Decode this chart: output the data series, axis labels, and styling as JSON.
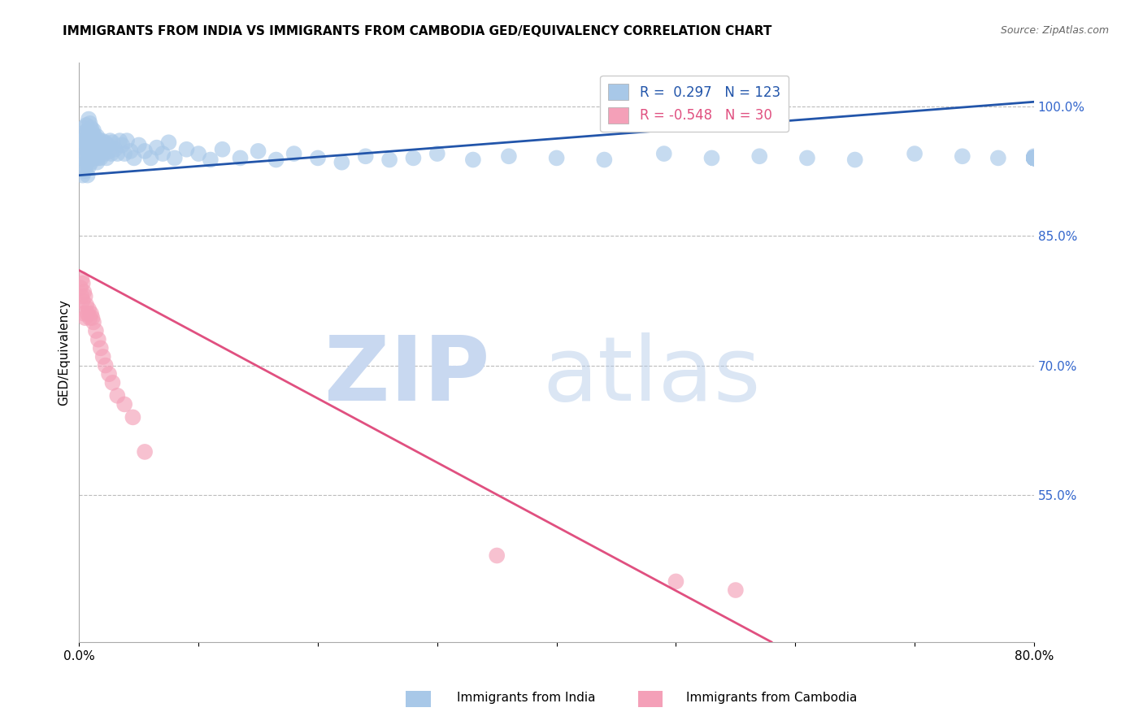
{
  "title": "IMMIGRANTS FROM INDIA VS IMMIGRANTS FROM CAMBODIA GED/EQUIVALENCY CORRELATION CHART",
  "source": "Source: ZipAtlas.com",
  "ylabel": "GED/Equivalency",
  "legend_india": "Immigrants from India",
  "legend_cambodia": "Immigrants from Cambodia",
  "R_india": 0.297,
  "N_india": 123,
  "R_cambodia": -0.548,
  "N_cambodia": 30,
  "xlim": [
    0.0,
    0.8
  ],
  "ylim": [
    0.38,
    1.05
  ],
  "yticks_right": [
    0.55,
    0.7,
    0.85,
    1.0
  ],
  "ytick_labels_right": [
    "55.0%",
    "70.0%",
    "85.0%",
    "100.0%"
  ],
  "blue_color": "#A8C8E8",
  "pink_color": "#F4A0B8",
  "blue_line_color": "#2255AA",
  "pink_line_color": "#E05080",
  "watermark_zip_color": "#C8D8F0",
  "watermark_atlas_color": "#B0C8E8",
  "india_x": [
    0.002,
    0.003,
    0.003,
    0.003,
    0.004,
    0.004,
    0.004,
    0.004,
    0.005,
    0.005,
    0.005,
    0.005,
    0.006,
    0.006,
    0.006,
    0.006,
    0.007,
    0.007,
    0.007,
    0.007,
    0.007,
    0.008,
    0.008,
    0.008,
    0.008,
    0.008,
    0.009,
    0.009,
    0.009,
    0.009,
    0.01,
    0.01,
    0.01,
    0.01,
    0.011,
    0.011,
    0.011,
    0.012,
    0.012,
    0.012,
    0.013,
    0.013,
    0.013,
    0.014,
    0.014,
    0.015,
    0.015,
    0.015,
    0.016,
    0.016,
    0.017,
    0.017,
    0.018,
    0.018,
    0.019,
    0.02,
    0.021,
    0.022,
    0.023,
    0.024,
    0.025,
    0.026,
    0.027,
    0.028,
    0.03,
    0.032,
    0.034,
    0.036,
    0.038,
    0.04,
    0.043,
    0.046,
    0.05,
    0.055,
    0.06,
    0.065,
    0.07,
    0.075,
    0.08,
    0.09,
    0.1,
    0.11,
    0.12,
    0.135,
    0.15,
    0.165,
    0.18,
    0.2,
    0.22,
    0.24,
    0.26,
    0.28,
    0.3,
    0.33,
    0.36,
    0.4,
    0.44,
    0.49,
    0.53,
    0.57,
    0.61,
    0.65,
    0.7,
    0.74,
    0.77,
    0.8,
    0.8,
    0.8,
    0.8,
    0.8,
    0.8,
    0.8,
    0.8,
    0.8,
    0.8,
    0.8,
    0.8,
    0.8,
    0.8,
    0.8,
    0.8,
    0.8,
    0.8
  ],
  "india_y": [
    0.96,
    0.92,
    0.94,
    0.96,
    0.93,
    0.945,
    0.96,
    0.975,
    0.925,
    0.94,
    0.955,
    0.97,
    0.935,
    0.95,
    0.962,
    0.978,
    0.92,
    0.935,
    0.95,
    0.96,
    0.972,
    0.93,
    0.945,
    0.958,
    0.97,
    0.985,
    0.94,
    0.955,
    0.968,
    0.98,
    0.935,
    0.948,
    0.96,
    0.975,
    0.94,
    0.955,
    0.97,
    0.945,
    0.958,
    0.972,
    0.94,
    0.952,
    0.965,
    0.945,
    0.96,
    0.935,
    0.95,
    0.965,
    0.94,
    0.955,
    0.945,
    0.96,
    0.94,
    0.955,
    0.96,
    0.95,
    0.945,
    0.958,
    0.94,
    0.955,
    0.948,
    0.96,
    0.945,
    0.958,
    0.95,
    0.945,
    0.96,
    0.955,
    0.945,
    0.96,
    0.948,
    0.94,
    0.955,
    0.948,
    0.94,
    0.952,
    0.945,
    0.958,
    0.94,
    0.95,
    0.945,
    0.938,
    0.95,
    0.94,
    0.948,
    0.938,
    0.945,
    0.94,
    0.935,
    0.942,
    0.938,
    0.94,
    0.945,
    0.938,
    0.942,
    0.94,
    0.938,
    0.945,
    0.94,
    0.942,
    0.94,
    0.938,
    0.945,
    0.942,
    0.94,
    0.942,
    0.94,
    0.94,
    0.94,
    0.94,
    0.94,
    0.94,
    0.94,
    0.94,
    0.94,
    0.94,
    0.94,
    0.94,
    0.94,
    0.94,
    0.94,
    0.94,
    0.94
  ],
  "cambodia_x": [
    0.001,
    0.002,
    0.002,
    0.003,
    0.003,
    0.004,
    0.004,
    0.005,
    0.005,
    0.006,
    0.007,
    0.008,
    0.009,
    0.01,
    0.011,
    0.012,
    0.014,
    0.016,
    0.018,
    0.02,
    0.022,
    0.025,
    0.028,
    0.032,
    0.038,
    0.045,
    0.055,
    0.35,
    0.5,
    0.55
  ],
  "cambodia_y": [
    0.79,
    0.8,
    0.78,
    0.795,
    0.775,
    0.785,
    0.76,
    0.78,
    0.755,
    0.77,
    0.76,
    0.765,
    0.755,
    0.76,
    0.755,
    0.75,
    0.74,
    0.73,
    0.72,
    0.71,
    0.7,
    0.69,
    0.68,
    0.665,
    0.655,
    0.64,
    0.6,
    0.48,
    0.45,
    0.44
  ],
  "blue_trend_x": [
    0.0,
    0.8
  ],
  "blue_trend_y": [
    0.92,
    1.005
  ],
  "pink_trend_x": [
    0.0,
    0.58
  ],
  "pink_trend_y": [
    0.81,
    0.38
  ]
}
